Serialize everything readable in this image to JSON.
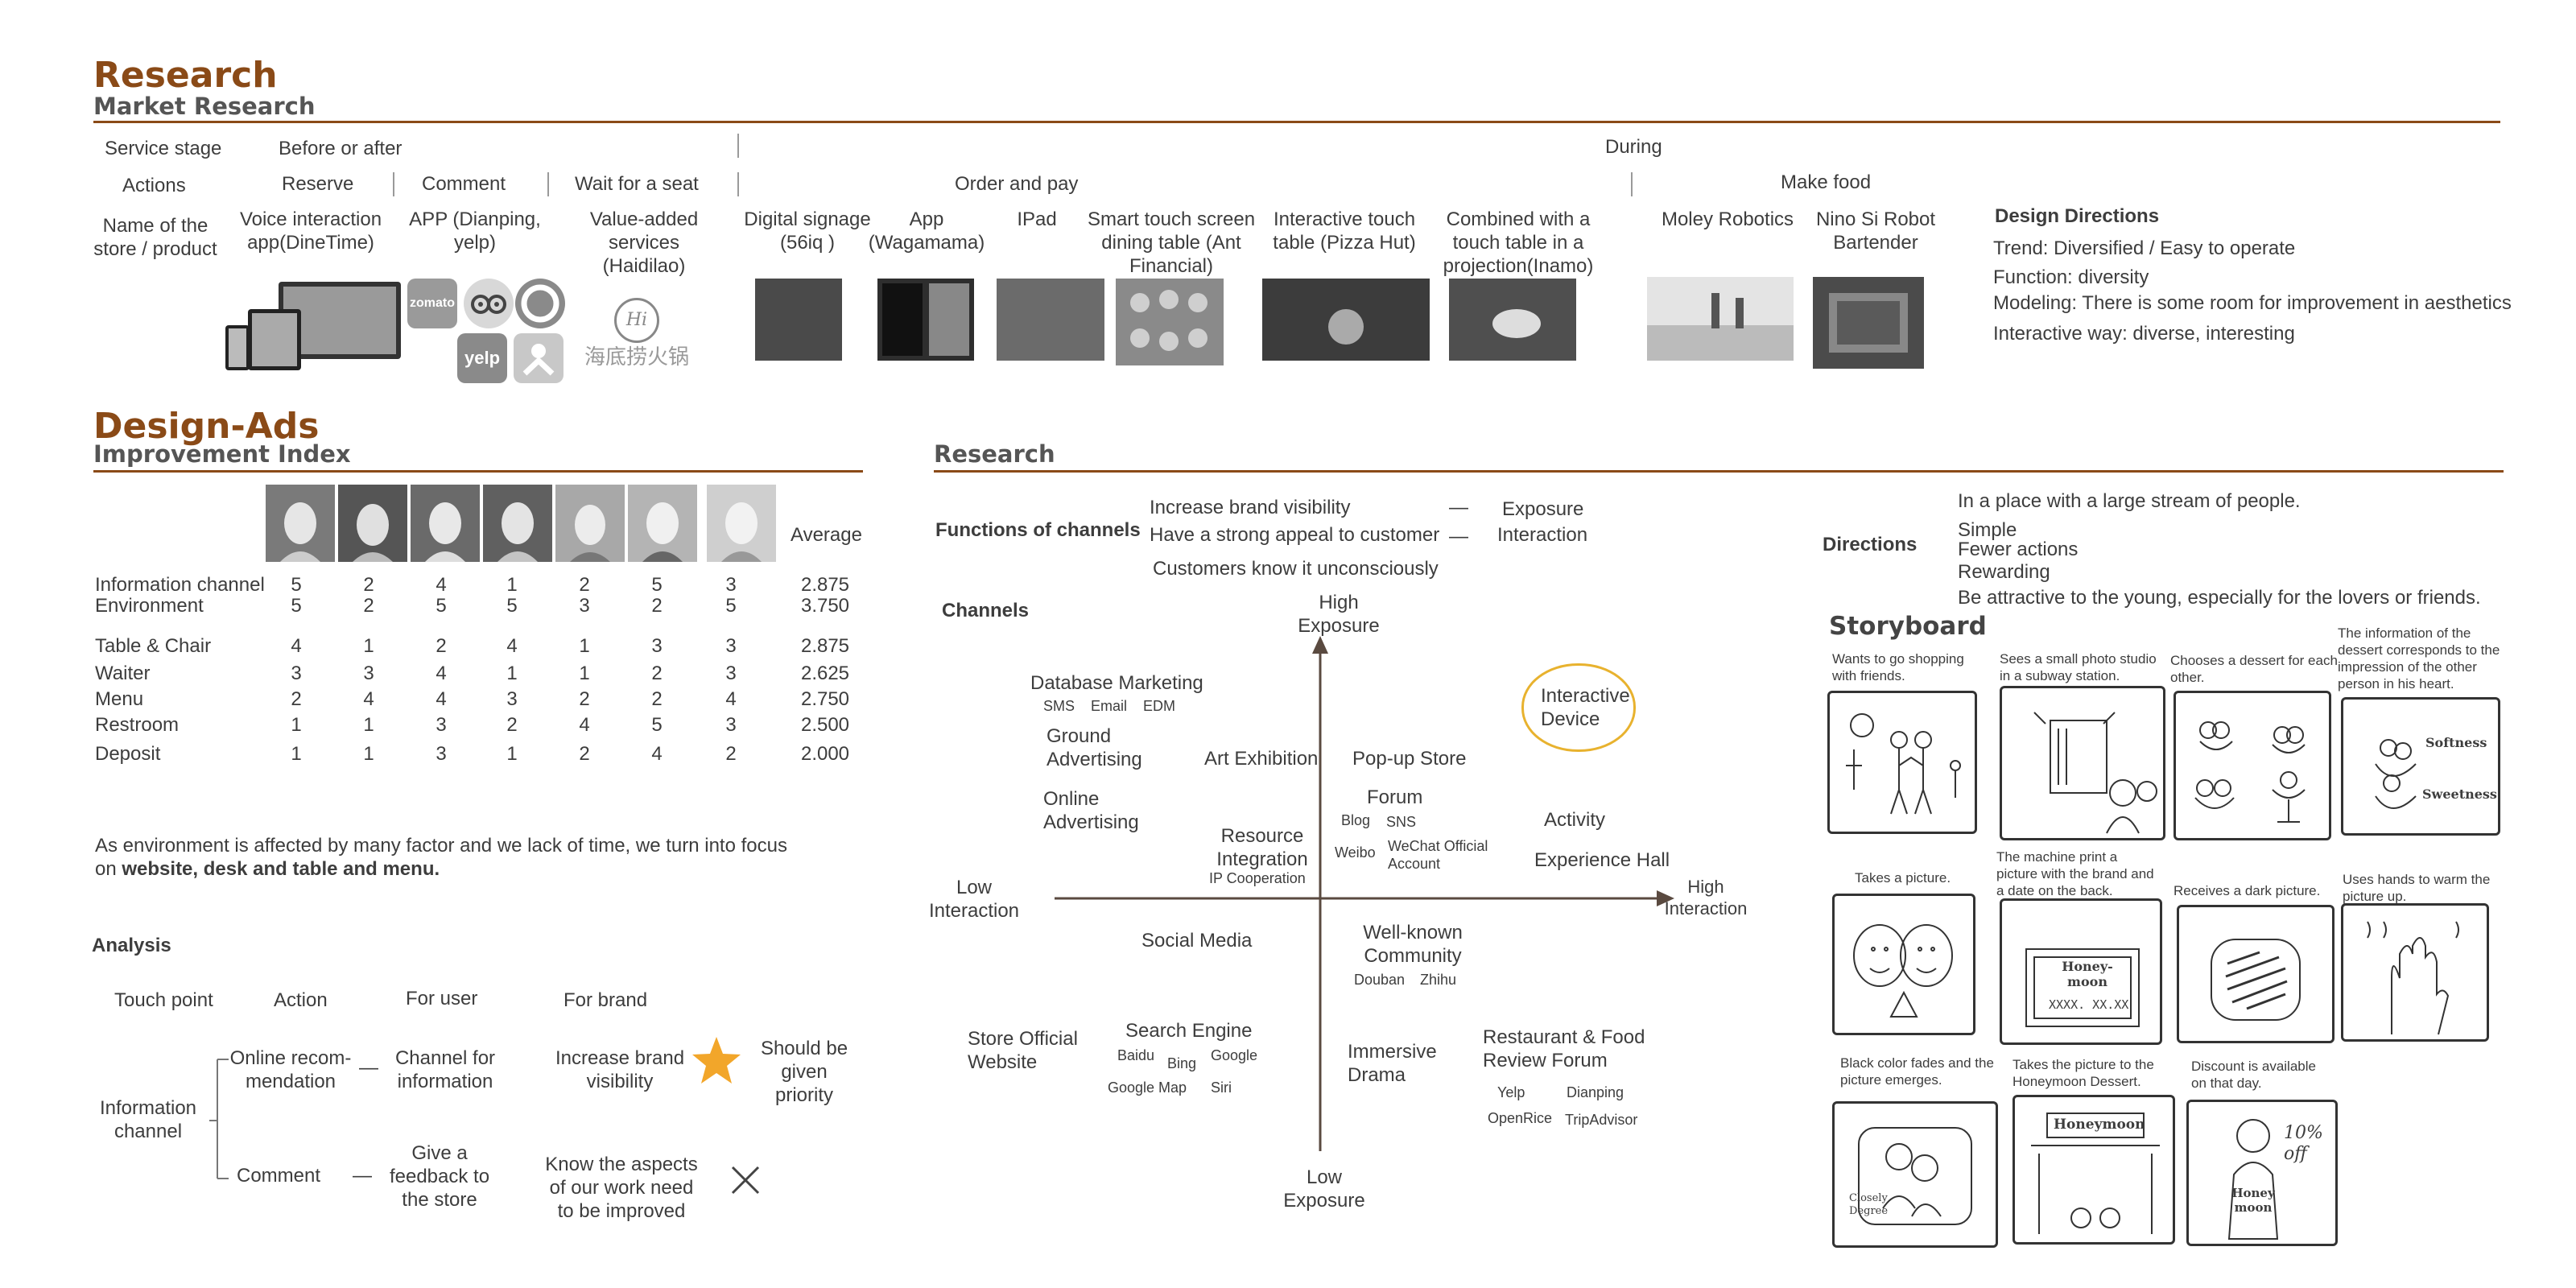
{
  "research_section": {
    "title": "Research",
    "subtitle": "Market Research",
    "row_labels": {
      "service_stage": "Service stage",
      "actions": "Actions",
      "name": "Name of the store / product"
    },
    "stages": {
      "before_after": "Before or after",
      "during": "During"
    },
    "actions": [
      "Reserve",
      "Comment",
      "Wait for a seat",
      "Order and pay",
      "Make food"
    ],
    "products": [
      "Voice interaction app(DineTime)",
      "APP (Dianping, yelp)",
      "Value-added services (Haidilao)",
      "Digital signage (56iq )",
      "App (Wagamama)",
      "IPad",
      "Smart touch screen dining table (Ant Financial)",
      "Interactive touch table (Pizza Hut)",
      "Combined with a touch table in a projection(Inamo)",
      "Moley Robotics",
      "Nino Si Robot Bartender"
    ],
    "logos": {
      "zomato": "zomato",
      "yelp": "yelp",
      "haidilao_en": "Hi",
      "haidilao_cn": "海底捞火锅"
    },
    "design_directions": {
      "title": "Design Directions",
      "items": [
        "Trend: Diversified / Easy to operate",
        "Function: diversity",
        "Modeling: There is some room for improvement in aesthetics",
        "Interactive way: diverse, interesting"
      ]
    }
  },
  "design_ads": {
    "title": "Design-Ads",
    "subtitle": "Improvement Index",
    "average_label": "Average",
    "rows": [
      {
        "label": "Information channel",
        "scores": [
          "5",
          "2",
          "4",
          "1",
          "2",
          "5",
          "3"
        ],
        "avg": "2.875"
      },
      {
        "label": "Environment",
        "scores": [
          "5",
          "2",
          "5",
          "5",
          "3",
          "2",
          "5"
        ],
        "avg": "3.750"
      },
      {
        "label": "Table & Chair",
        "scores": [
          "4",
          "1",
          "2",
          "4",
          "1",
          "3",
          "3"
        ],
        "avg": "2.875"
      },
      {
        "label": "Waiter",
        "scores": [
          "3",
          "3",
          "4",
          "1",
          "1",
          "2",
          "3"
        ],
        "avg": "2.625"
      },
      {
        "label": "Menu",
        "scores": [
          "2",
          "4",
          "4",
          "3",
          "2",
          "2",
          "4"
        ],
        "avg": "2.750"
      },
      {
        "label": "Restroom",
        "scores": [
          "1",
          "1",
          "3",
          "2",
          "4",
          "5",
          "3"
        ],
        "avg": "2.500"
      },
      {
        "label": "Deposit",
        "scores": [
          "1",
          "1",
          "3",
          "1",
          "2",
          "4",
          "2"
        ],
        "avg": "2.000"
      }
    ],
    "note_line1": "As environment is affected by many factor and we lack of time,  we turn into focus",
    "note_prefix": "on ",
    "note_bold": "website, desk and table and menu.",
    "analysis": {
      "title": "Analysis",
      "headers": [
        "Touch point",
        "Action",
        "For user",
        "For brand"
      ],
      "touch_point": "Information channel",
      "rows": [
        {
          "action": "Online recom- mendation",
          "user": "Channel for information",
          "brand": "Increase brand visibility",
          "verdict": "Should be given priority"
        },
        {
          "action": "Comment",
          "user": "Give a feedback to the store",
          "brand": "Know the aspects of our work need to be improved"
        }
      ]
    }
  },
  "research2": {
    "title": "Research",
    "functions_label": "Functions of channels",
    "functions": [
      {
        "text": "Increase brand visibility",
        "target": "Exposure"
      },
      {
        "text": "Have a strong appeal to customer",
        "target": "Interaction"
      },
      {
        "text": "Customers know it unconsciously",
        "target": ""
      }
    ],
    "channels_label": "Channels",
    "axes": {
      "high_exposure": "High Exposure",
      "low_exposure": "Low Exposure",
      "low_interaction": "Low Interaction",
      "high_interaction": "High Interaction"
    },
    "items": {
      "db_marketing": "Database Marketing",
      "db_sub": "SMS    Email    EDM",
      "ground": "Ground Advertising",
      "online_adv": "Online Advertising",
      "art": "Art Exhibition",
      "popup": "Pop-up Store",
      "resource": "Resource Integration",
      "ip": "IP Cooperation",
      "forum": "Forum",
      "blog": "Blog",
      "sns": "SNS",
      "weibo": "Weibo",
      "wechat": "WeChat Official Account",
      "interactive_device": "Interactive Device",
      "activity": "Activity",
      "exp_hall": "Experience Hall",
      "social": "Social Media",
      "wellknown": "Well-known Community",
      "douban": "Douban",
      "zhihu": "Zhihu",
      "store_site": "Store Official Website",
      "search": "Search Engine",
      "baidu": "Baidu",
      "bing": "Bing",
      "google": "Google",
      "googlemap": "Google Map",
      "siri": "Siri",
      "drama": "Immersive Drama",
      "restaurant_forum": "Restaurant & Food Review Forum",
      "yelp": "Yelp",
      "dianping": "Dianping",
      "openrice": "OpenRice",
      "tripadvisor": "TripAdvisor"
    }
  },
  "directions": {
    "label": "Directions",
    "lines": [
      "In a place with a large stream of people.",
      "Simple",
      "Fewer actions",
      "Rewarding",
      "Be attractive to the young, especially for the lovers or friends."
    ]
  },
  "storyboard": {
    "title": "Storyboard",
    "captions": [
      "Wants to go shopping with friends.",
      "Sees a small photo studio in a subway station.",
      "Chooses a dessert for each other.",
      "The information of the dessert corresponds to the impression of the other person in his heart.",
      "Takes a picture.",
      "The machine print a picture with the brand and a date on the back.",
      "Receives a dark picture.",
      "Uses hands to warm the picture up.",
      "Black color fades and the picture emerges.",
      "Takes the picture to the Honeymoon Dessert.",
      "Discount is available on that day."
    ],
    "sketch_text": {
      "softness": "Softness",
      "sweetness": "Sweetness",
      "honeymoon_small": "Honey- moon",
      "date": "XXXX. XX.XX",
      "honeymoon_sign": "Honeymoon",
      "discount": "10% off",
      "degree": "Closely Degree",
      "honey_bag": "Honey moon"
    }
  },
  "colors": {
    "brown": "#8a4a17",
    "star": "#f2a62a",
    "circle": "#e8b22e",
    "text": "#3d3d3d"
  }
}
